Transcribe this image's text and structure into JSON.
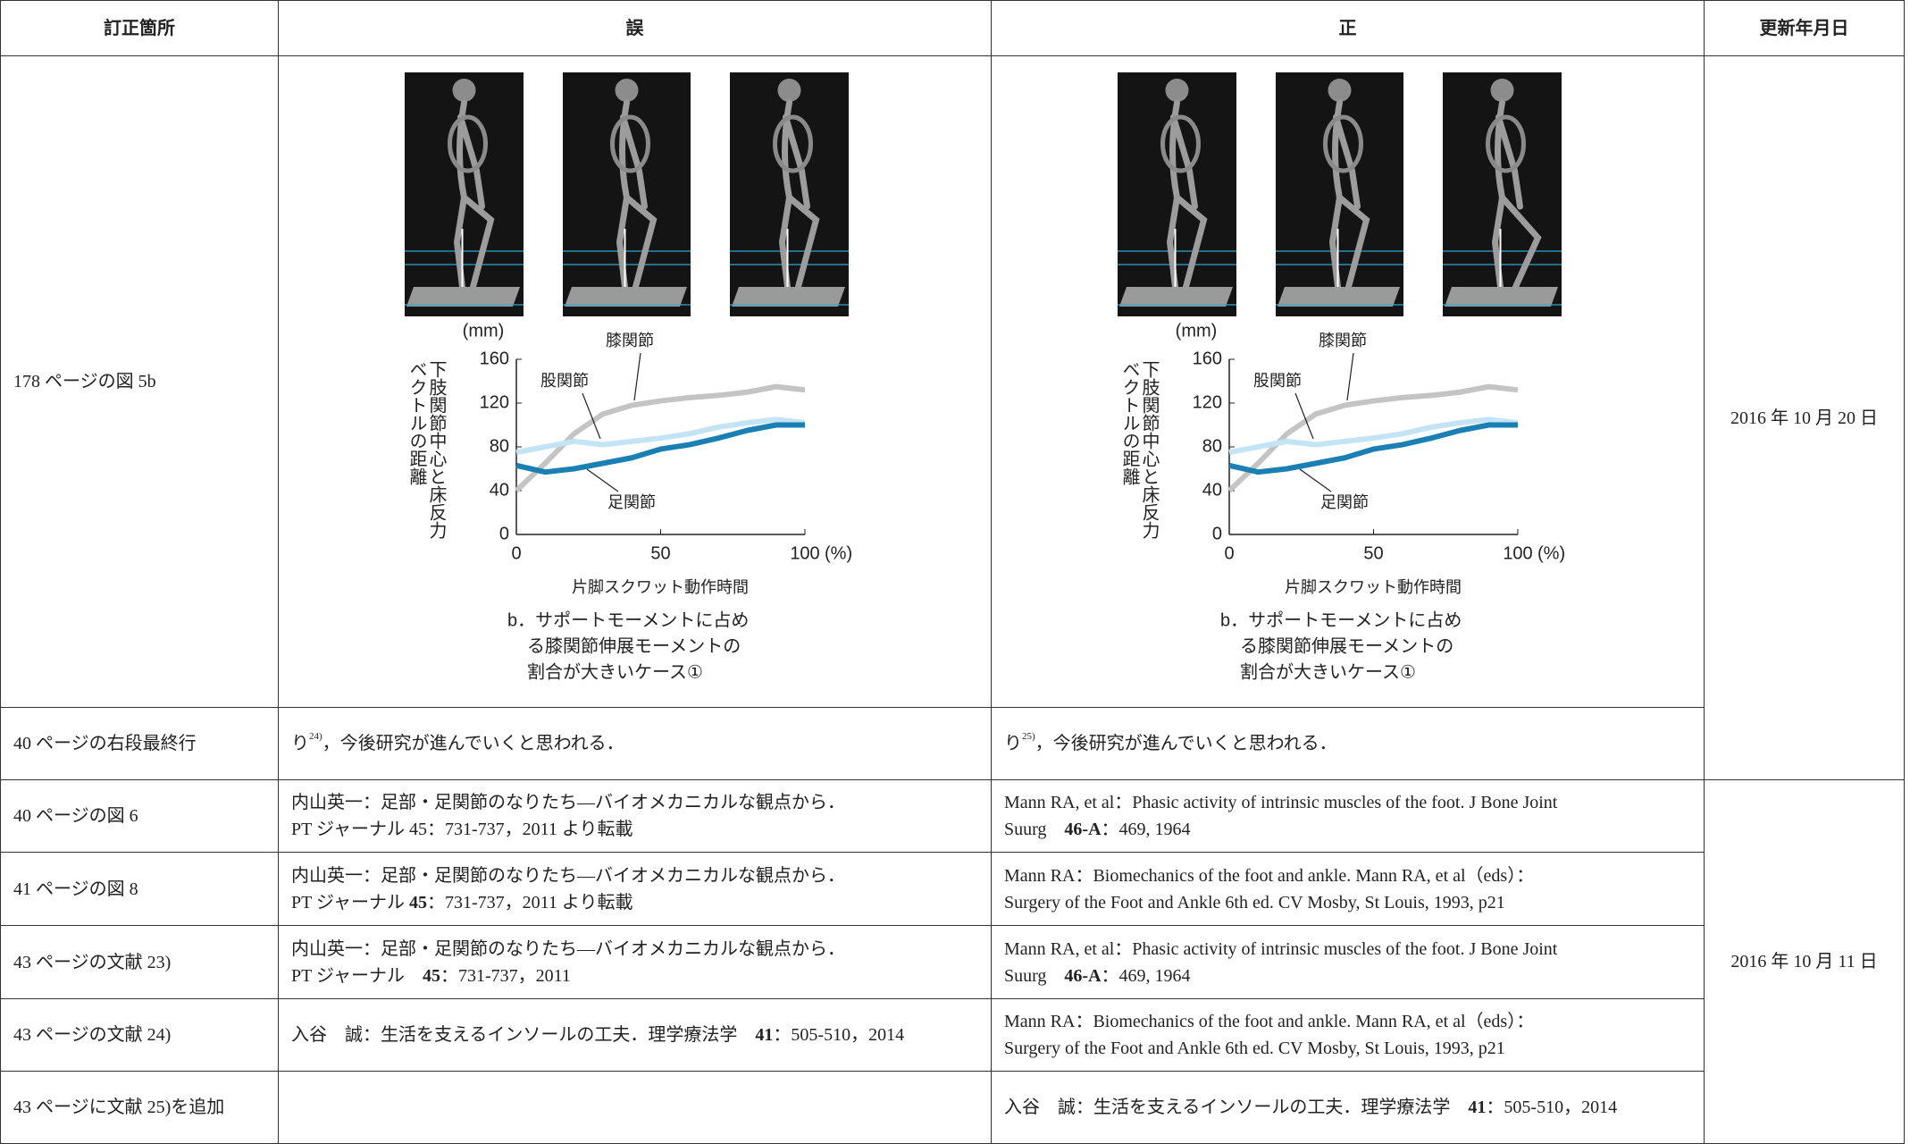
{
  "table": {
    "headers": [
      "訂正箇所",
      "誤",
      "正",
      "更新年月日"
    ],
    "rows": [
      {
        "place": "178 ページの図 5b",
        "date": "2016 年 10 月 20 日"
      },
      {
        "place": "40 ページの右段最終行",
        "wrong": [
          [
            "り",
            {
              "text": "24)",
              "sup": true
            },
            "，今後研究が進んでいくと思われる．"
          ]
        ],
        "right": [
          [
            "り",
            {
              "text": "25)",
              "sup": true
            },
            "，今後研究が進んでいくと思われる．"
          ]
        ]
      },
      {
        "place": "40 ページの図 6",
        "wrong": [
          [
            "内山英一：足部・足関節のなりたち―バイオメカニカルな観点から．"
          ],
          [
            "PT ジャーナル 45：731-737，2011 より転載"
          ]
        ],
        "right": [
          [
            "Mann RA, et al：Phasic activity of intrinsic muscles of the foot. J Bone Joint"
          ],
          [
            "Suurg　",
            {
              "text": "46-A",
              "bold": true
            },
            "：469, 1964"
          ]
        ],
        "date": "2016 年 10 月 11 日"
      },
      {
        "place": "41 ページの図 8",
        "wrong": [
          [
            "内山英一：足部・足関節のなりたち―バイオメカニカルな観点から．"
          ],
          [
            "PT ジャーナル ",
            {
              "text": "45",
              "bold": true
            },
            "：731-737，2011 より転載"
          ]
        ],
        "right": [
          [
            "Mann RA：Biomechanics of the foot and ankle. Mann RA, et al（eds）："
          ],
          [
            "Surgery of the Foot and Ankle 6th ed. CV Mosby, St Louis, 1993, p21"
          ]
        ]
      },
      {
        "place": "43 ページの文献 23)",
        "wrong": [
          [
            "内山英一：足部・足関節のなりたち―バイオメカニカルな観点から．"
          ],
          [
            "PT ジャーナル　",
            {
              "text": "45",
              "bold": true
            },
            "：731-737，2011"
          ]
        ],
        "right": [
          [
            "Mann RA, et al：Phasic activity of intrinsic muscles of the foot. J Bone Joint"
          ],
          [
            "Suurg　",
            {
              "text": "46-A",
              "bold": true
            },
            "：469, 1964"
          ]
        ]
      },
      {
        "place": "43 ページの文献 24)",
        "wrong": [
          [
            "入谷　誠：生活を支えるインソールの工夫．理学療法学　",
            {
              "text": "41",
              "bold": true
            },
            "：505-510，2014"
          ]
        ],
        "right": [
          [
            "Mann RA：Biomechanics of the foot and ankle. Mann RA, et al（eds）："
          ],
          [
            "Surgery of the Foot and Ankle 6th ed. CV Mosby, St Louis, 1993, p21"
          ]
        ]
      },
      {
        "place": "43 ページに文献 25)を追加",
        "wrong": [],
        "right": [
          [
            "入谷　誠：生活を支えるインソールの工夫．理学療法学　",
            {
              "text": "41",
              "bold": true
            },
            "：505-510，2014"
          ]
        ]
      }
    ]
  },
  "chart_data": {
    "type": "line",
    "unit": "(mm)",
    "ylabel": [
      "下肢関節中心と床反力",
      "ベクトルの距離"
    ],
    "xlabel": "片脚スクワット動作時間",
    "xunit": "(%)",
    "caption": [
      "b．サポートモーメントに占め",
      "る膝関節伸展モーメントの",
      "割合が大きいケース①"
    ],
    "x": [
      0,
      10,
      20,
      30,
      40,
      50,
      60,
      70,
      80,
      90,
      100
    ],
    "xlim": [
      0,
      100
    ],
    "xticks": [
      0,
      50,
      100
    ],
    "ylim": [
      0,
      160
    ],
    "yticks": [
      0,
      40,
      80,
      120,
      160
    ],
    "series": [
      {
        "name": "膝関節",
        "color": "#c4c4c4",
        "values": [
          40,
          65,
          92,
          110,
          118,
          122,
          125,
          127,
          130,
          135,
          132
        ]
      },
      {
        "name": "股関節",
        "color": "#c2e4f4",
        "values": [
          75,
          80,
          85,
          82,
          85,
          88,
          92,
          98,
          102,
          105,
          102
        ]
      },
      {
        "name": "足関節",
        "color": "#1a7fb2",
        "values": [
          63,
          57,
          60,
          65,
          70,
          78,
          82,
          88,
          95,
          100,
          100
        ]
      }
    ]
  }
}
